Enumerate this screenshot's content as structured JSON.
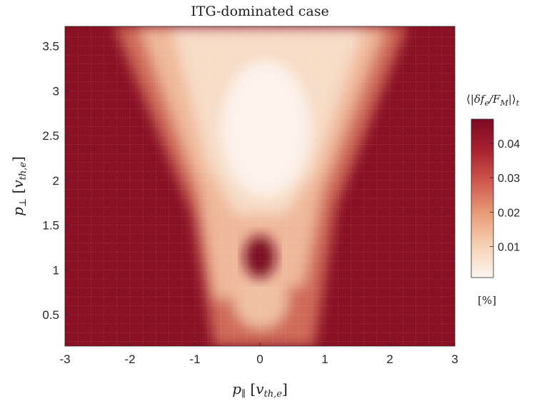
{
  "chart_data": {
    "type": "heatmap",
    "title": "ITG-dominated case",
    "xlabel": "p∥ [vth,e]",
    "ylabel": "p⊥ [vth,e]",
    "xlim": [
      -3,
      3
    ],
    "ylim": [
      0.15,
      3.72
    ],
    "x_ticks": [
      "-3",
      "-2",
      "-1",
      "0",
      "1",
      "2",
      "3"
    ],
    "y_ticks": [
      "0.5",
      "1",
      "1.5",
      "2",
      "2.5",
      "3",
      "3.5"
    ],
    "grid": true,
    "colorbar": {
      "label": "⟨|δfe/FM|⟩t",
      "unit": "[%]",
      "range": [
        0.001,
        0.047
      ],
      "ticks": [
        "0.01",
        "0.02",
        "0.03",
        "0.04"
      ],
      "colors": [
        "#fcf5ef",
        "#f6d2b4",
        "#ea9d79",
        "#cf5a4f",
        "#a9222f",
        "#7c0a23"
      ]
    },
    "field_description_values": {
      "background_level": 0.045,
      "v_region_min_level": 0.003,
      "central_hot_spot": {
        "x": 0.0,
        "y": 1.1,
        "level": 0.046
      },
      "low_region_near_origin": {
        "x": 0.0,
        "y": 0.45,
        "level": 0.012
      }
    }
  }
}
